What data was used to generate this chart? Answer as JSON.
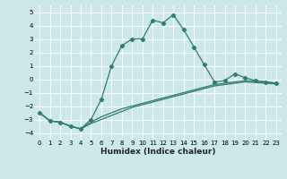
{
  "title": "",
  "xlabel": "Humidex (Indice chaleur)",
  "bg_color": "#cce8e8",
  "grid_color": "#ffffff",
  "line_color": "#2e7d6e",
  "xlim": [
    -0.5,
    23.5
  ],
  "ylim": [
    -4.5,
    5.5
  ],
  "xticks": [
    0,
    1,
    2,
    3,
    4,
    5,
    6,
    7,
    8,
    9,
    10,
    11,
    12,
    13,
    14,
    15,
    16,
    17,
    18,
    19,
    20,
    21,
    22,
    23
  ],
  "yticks": [
    -4,
    -3,
    -2,
    -1,
    0,
    1,
    2,
    3,
    4,
    5
  ],
  "main_x": [
    0,
    1,
    2,
    3,
    4,
    5,
    6,
    7,
    8,
    9,
    10,
    11,
    12,
    13,
    14,
    15,
    16,
    17,
    18,
    19,
    20,
    21,
    22,
    23
  ],
  "main_y": [
    -2.5,
    -3.1,
    -3.2,
    -3.5,
    -3.7,
    -3.0,
    -1.5,
    1.0,
    2.5,
    3.0,
    3.0,
    4.4,
    4.2,
    4.8,
    3.7,
    2.4,
    1.1,
    -0.2,
    -0.1,
    0.4,
    0.1,
    -0.1,
    -0.2,
    -0.3
  ],
  "line2_x": [
    0,
    1,
    2,
    3,
    4,
    5,
    6,
    7,
    8,
    9,
    10,
    11,
    12,
    13,
    14,
    15,
    16,
    17,
    18,
    19,
    20,
    21,
    22,
    23
  ],
  "line2_y": [
    -2.5,
    -3.1,
    -3.2,
    -3.5,
    -3.7,
    -3.2,
    -2.8,
    -2.5,
    -2.2,
    -2.0,
    -1.8,
    -1.6,
    -1.4,
    -1.2,
    -1.0,
    -0.8,
    -0.6,
    -0.4,
    -0.3,
    -0.2,
    -0.1,
    -0.15,
    -0.2,
    -0.3
  ],
  "line3_x": [
    0,
    1,
    2,
    3,
    4,
    5,
    6,
    7,
    8,
    9,
    10,
    11,
    12,
    13,
    14,
    15,
    16,
    17,
    18,
    19,
    20,
    21,
    22,
    23
  ],
  "line3_y": [
    -2.5,
    -3.1,
    -3.2,
    -3.5,
    -3.7,
    -3.3,
    -3.0,
    -2.7,
    -2.4,
    -2.1,
    -1.9,
    -1.7,
    -1.5,
    -1.3,
    -1.1,
    -0.9,
    -0.7,
    -0.5,
    -0.4,
    -0.3,
    -0.2,
    -0.25,
    -0.3,
    -0.35
  ]
}
